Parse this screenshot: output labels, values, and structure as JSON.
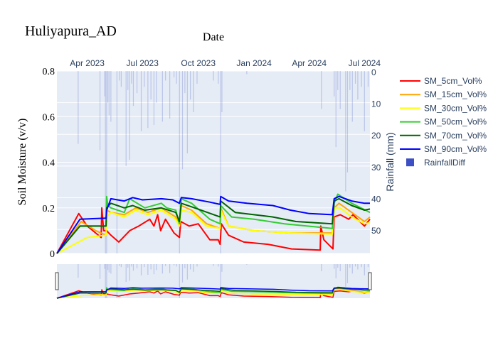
{
  "chart_data": {
    "type": "line",
    "title": "Huliyapura_AD",
    "xlabel": "Date",
    "ylabel": "Soil Moisture (v/v)",
    "y2label": "Rainfall (mm)",
    "xlim": [
      "2023-02-10",
      "2024-07-10"
    ],
    "ylim": [
      0,
      0.8
    ],
    "y2lim": [
      57.6,
      0
    ],
    "y2_reversed": true,
    "grid": true,
    "legend_placement": "right",
    "x_ticks": [
      {
        "date": "2023-04-01",
        "label": "Apr 2023"
      },
      {
        "date": "2023-07-01",
        "label": "Jul 2023"
      },
      {
        "date": "2023-10-01",
        "label": "Oct 2023"
      },
      {
        "date": "2024-01-01",
        "label": "Jan 2024"
      },
      {
        "date": "2024-04-01",
        "label": "Apr 2024"
      },
      {
        "date": "2024-07-01",
        "label": "Jul 2024"
      }
    ],
    "y_ticks": [
      "0",
      "0.2",
      "0.4",
      "0.6",
      "0.8"
    ],
    "y2_ticks": [
      "0",
      "10",
      "20",
      "30",
      "40",
      "50"
    ],
    "range_slider": true,
    "series": [
      {
        "name": "SM_5cm_Vol%",
        "color": "#ff0000",
        "points": [
          [
            "2023-02-10",
            0
          ],
          [
            "2023-03-18",
            0.175
          ],
          [
            "2023-04-01",
            0.12
          ],
          [
            "2023-04-24",
            0.07
          ],
          [
            "2023-04-25",
            0.2
          ],
          [
            "2023-04-28",
            0.1
          ],
          [
            "2023-05-03",
            0.1
          ],
          [
            "2023-05-10",
            0.08
          ],
          [
            "2023-05-23",
            0.05
          ],
          [
            "2023-06-10",
            0.1
          ],
          [
            "2023-06-25",
            0.12
          ],
          [
            "2023-07-13",
            0.15
          ],
          [
            "2023-07-20",
            0.12
          ],
          [
            "2023-07-26",
            0.17
          ],
          [
            "2023-07-31",
            0.1
          ],
          [
            "2023-08-08",
            0.15
          ],
          [
            "2023-08-22",
            0.09
          ],
          [
            "2023-08-31",
            0.07
          ],
          [
            "2023-09-02",
            0.14
          ],
          [
            "2023-09-16",
            0.12
          ],
          [
            "2023-10-01",
            0.13
          ],
          [
            "2023-10-20",
            0.06
          ],
          [
            "2023-11-03",
            0.06
          ],
          [
            "2023-11-06",
            0.04
          ],
          [
            "2023-11-08",
            0.13
          ],
          [
            "2023-11-20",
            0.08
          ],
          [
            "2023-12-15",
            0.05
          ],
          [
            "2024-01-24",
            0.04
          ],
          [
            "2024-03-03",
            0.02
          ],
          [
            "2024-04-19",
            0.015
          ],
          [
            "2024-04-20",
            0.12
          ],
          [
            "2024-04-25",
            0.06
          ],
          [
            "2024-05-10",
            0.02
          ],
          [
            "2024-05-12",
            0.16
          ],
          [
            "2024-05-22",
            0.17
          ],
          [
            "2024-06-05",
            0.15
          ],
          [
            "2024-06-12",
            0.17
          ],
          [
            "2024-07-01",
            0.12
          ],
          [
            "2024-07-10",
            0.15
          ]
        ]
      },
      {
        "name": "SM_15cm_Vol%",
        "color": "#ffa500",
        "points": [
          [
            "2023-02-10",
            0
          ],
          [
            "2023-03-22",
            0.14
          ],
          [
            "2023-04-15",
            0.1
          ],
          [
            "2023-05-02",
            0.08
          ],
          [
            "2023-05-03",
            0.19
          ],
          [
            "2023-05-10",
            0.18
          ],
          [
            "2023-06-01",
            0.17
          ],
          [
            "2023-06-20",
            0.2
          ],
          [
            "2023-07-10",
            0.18
          ],
          [
            "2023-08-01",
            0.2
          ],
          [
            "2023-08-25",
            0.16
          ],
          [
            "2023-08-31",
            0.12
          ],
          [
            "2023-09-03",
            0.21
          ],
          [
            "2023-09-20",
            0.19
          ],
          [
            "2023-10-15",
            0.13
          ],
          [
            "2023-11-06",
            0.11
          ],
          [
            "2023-11-07",
            0.2
          ],
          [
            "2023-11-20",
            0.12
          ],
          [
            "2024-01-01",
            0.1
          ],
          [
            "2024-03-01",
            0.09
          ],
          [
            "2024-05-09",
            0.09
          ],
          [
            "2024-05-12",
            0.2
          ],
          [
            "2024-05-20",
            0.22
          ],
          [
            "2024-06-10",
            0.18
          ],
          [
            "2024-07-01",
            0.14
          ],
          [
            "2024-07-10",
            0.16
          ]
        ]
      },
      {
        "name": "SM_30cm_Vol%",
        "color": "#ffff00",
        "points": [
          [
            "2023-02-10",
            0
          ],
          [
            "2023-04-01",
            0.07
          ],
          [
            "2023-05-02",
            0.08
          ],
          [
            "2023-05-03",
            0.16
          ],
          [
            "2023-05-10",
            0.18
          ],
          [
            "2023-06-01",
            0.16
          ],
          [
            "2023-06-20",
            0.19
          ],
          [
            "2023-07-10",
            0.17
          ],
          [
            "2023-08-01",
            0.19
          ],
          [
            "2023-08-25",
            0.15
          ],
          [
            "2023-08-31",
            0.12
          ],
          [
            "2023-09-03",
            0.19
          ],
          [
            "2023-09-20",
            0.18
          ],
          [
            "2023-10-15",
            0.12
          ],
          [
            "2023-11-06",
            0.11
          ],
          [
            "2023-11-07",
            0.19
          ],
          [
            "2023-11-20",
            0.12
          ],
          [
            "2024-01-01",
            0.1
          ],
          [
            "2024-03-01",
            0.09
          ],
          [
            "2024-05-09",
            0.085
          ],
          [
            "2024-05-12",
            0.2
          ],
          [
            "2024-05-22",
            0.2
          ],
          [
            "2024-06-10",
            0.16
          ],
          [
            "2024-07-01",
            0.13
          ],
          [
            "2024-07-10",
            0.135
          ]
        ]
      },
      {
        "name": "SM_50cm_Vol%",
        "color": "#32cd32",
        "points": [
          [
            "2023-02-10",
            0
          ],
          [
            "2023-03-20",
            0.12
          ],
          [
            "2023-05-02",
            0.12
          ],
          [
            "2023-05-03",
            0.25
          ],
          [
            "2023-05-05",
            0.21
          ],
          [
            "2023-05-10",
            0.2
          ],
          [
            "2023-06-01",
            0.18
          ],
          [
            "2023-06-10",
            0.24
          ],
          [
            "2023-07-05",
            0.2
          ],
          [
            "2023-08-01",
            0.22
          ],
          [
            "2023-08-10",
            0.2
          ],
          [
            "2023-08-25",
            0.19
          ],
          [
            "2023-08-31",
            0.13
          ],
          [
            "2023-09-03",
            0.24
          ],
          [
            "2023-09-20",
            0.22
          ],
          [
            "2023-10-20",
            0.15
          ],
          [
            "2023-11-06",
            0.13
          ],
          [
            "2023-11-07",
            0.21
          ],
          [
            "2023-11-25",
            0.16
          ],
          [
            "2024-01-01",
            0.15
          ],
          [
            "2024-02-20",
            0.13
          ],
          [
            "2024-05-09",
            0.11
          ],
          [
            "2024-05-12",
            0.22
          ],
          [
            "2024-05-18",
            0.26
          ],
          [
            "2024-06-10",
            0.22
          ],
          [
            "2024-07-10",
            0.18
          ]
        ]
      },
      {
        "name": "SM_70cm_Vol%",
        "color": "#006400",
        "points": [
          [
            "2023-02-10",
            0
          ],
          [
            "2023-03-20",
            0.12
          ],
          [
            "2023-05-02",
            0.12
          ],
          [
            "2023-05-03",
            0.2
          ],
          [
            "2023-05-10",
            0.22
          ],
          [
            "2023-06-01",
            0.2
          ],
          [
            "2023-06-15",
            0.21
          ],
          [
            "2023-07-05",
            0.19
          ],
          [
            "2023-08-01",
            0.2
          ],
          [
            "2023-08-25",
            0.18
          ],
          [
            "2023-08-31",
            0.14
          ],
          [
            "2023-09-03",
            0.22
          ],
          [
            "2023-09-25",
            0.2
          ],
          [
            "2023-11-06",
            0.16
          ],
          [
            "2023-11-07",
            0.23
          ],
          [
            "2023-12-01",
            0.18
          ],
          [
            "2024-01-01",
            0.17
          ],
          [
            "2024-02-01",
            0.16
          ],
          [
            "2024-03-10",
            0.14
          ],
          [
            "2024-05-09",
            0.13
          ],
          [
            "2024-05-12",
            0.23
          ],
          [
            "2024-05-20",
            0.24
          ],
          [
            "2024-06-10",
            0.21
          ],
          [
            "2024-07-01",
            0.19
          ],
          [
            "2024-07-10",
            0.195
          ]
        ]
      },
      {
        "name": "SM_90cm_Vol%",
        "color": "#0000ff",
        "points": [
          [
            "2023-02-10",
            0
          ],
          [
            "2023-03-20",
            0.15
          ],
          [
            "2023-05-02",
            0.155
          ],
          [
            "2023-05-03",
            0.19
          ],
          [
            "2023-05-10",
            0.24
          ],
          [
            "2023-06-01",
            0.23
          ],
          [
            "2023-06-15",
            0.245
          ],
          [
            "2023-07-01",
            0.235
          ],
          [
            "2023-08-01",
            0.24
          ],
          [
            "2023-08-20",
            0.235
          ],
          [
            "2023-08-31",
            0.22
          ],
          [
            "2023-09-03",
            0.245
          ],
          [
            "2023-09-20",
            0.24
          ],
          [
            "2023-10-20",
            0.225
          ],
          [
            "2023-11-06",
            0.215
          ],
          [
            "2023-11-07",
            0.25
          ],
          [
            "2023-11-20",
            0.23
          ],
          [
            "2023-12-20",
            0.22
          ],
          [
            "2024-02-01",
            0.21
          ],
          [
            "2024-03-01",
            0.19
          ],
          [
            "2024-04-01",
            0.175
          ],
          [
            "2024-05-09",
            0.17
          ],
          [
            "2024-05-12",
            0.24
          ],
          [
            "2024-05-20",
            0.25
          ],
          [
            "2024-06-10",
            0.23
          ],
          [
            "2024-07-01",
            0.22
          ],
          [
            "2024-07-10",
            0.22
          ]
        ]
      }
    ],
    "bars": {
      "name": "RainfallDiff",
      "color": "#3d4fc4",
      "axis": "y2",
      "points": [
        [
          "2023-03-17",
          23
        ],
        [
          "2023-04-22",
          25
        ],
        [
          "2023-04-30",
          8
        ],
        [
          "2023-05-01",
          60
        ],
        [
          "2023-05-03",
          60
        ],
        [
          "2023-05-05",
          10
        ],
        [
          "2023-05-07",
          14
        ],
        [
          "2023-05-10",
          16
        ],
        [
          "2023-05-20",
          60
        ],
        [
          "2023-05-24",
          3
        ],
        [
          "2023-05-27",
          5
        ],
        [
          "2023-06-04",
          30
        ],
        [
          "2023-06-07",
          6
        ],
        [
          "2023-06-10",
          28
        ],
        [
          "2023-06-13",
          4
        ],
        [
          "2023-06-16",
          11
        ],
        [
          "2023-06-22",
          7
        ],
        [
          "2023-06-29",
          19
        ],
        [
          "2023-07-04",
          5
        ],
        [
          "2023-07-10",
          18
        ],
        [
          "2023-07-15",
          9
        ],
        [
          "2023-07-20",
          17
        ],
        [
          "2023-07-24",
          10
        ],
        [
          "2023-08-03",
          16
        ],
        [
          "2023-08-08",
          3
        ],
        [
          "2023-08-15",
          15
        ],
        [
          "2023-08-22",
          2
        ],
        [
          "2023-08-26",
          4
        ],
        [
          "2023-08-31",
          60
        ],
        [
          "2023-09-05",
          31
        ],
        [
          "2023-09-09",
          7
        ],
        [
          "2023-09-13",
          26
        ],
        [
          "2023-09-18",
          9
        ],
        [
          "2023-09-23",
          13
        ],
        [
          "2023-09-29",
          4
        ],
        [
          "2023-10-26",
          3
        ],
        [
          "2023-11-03",
          4
        ],
        [
          "2023-11-07",
          60
        ],
        [
          "2023-11-09",
          13
        ],
        [
          "2023-12-20",
          1
        ],
        [
          "2024-04-21",
          12
        ],
        [
          "2024-05-12",
          8
        ],
        [
          "2024-05-15",
          24
        ],
        [
          "2024-05-18",
          6
        ],
        [
          "2024-05-22",
          12
        ],
        [
          "2024-05-31",
          38
        ],
        [
          "2024-06-03",
          32
        ],
        [
          "2024-06-07",
          6
        ],
        [
          "2024-06-11",
          16
        ],
        [
          "2024-06-16",
          4
        ],
        [
          "2024-06-20",
          9
        ],
        [
          "2024-06-26",
          5
        ],
        [
          "2024-07-01",
          19
        ],
        [
          "2024-07-07",
          5
        ]
      ]
    }
  }
}
